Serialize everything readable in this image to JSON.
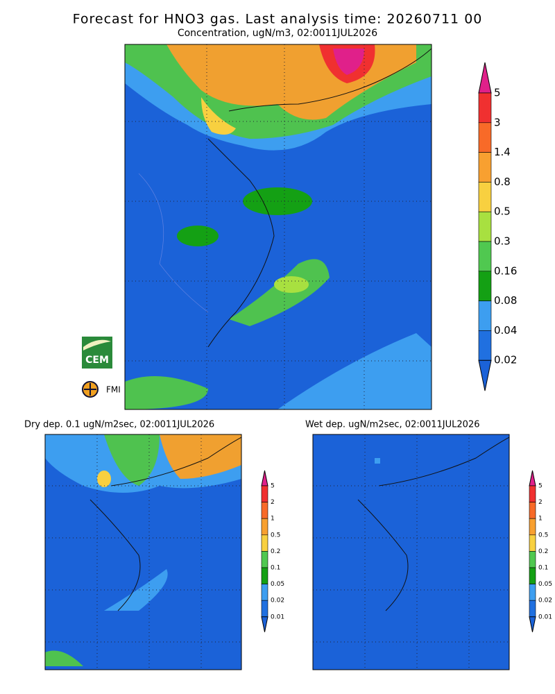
{
  "header": {
    "title": "Forecast for HNO3 gas. Last analysis time: 20260711 00",
    "subtitle": "Concentration, ugN/m3, 02:0011JUL2026"
  },
  "main_colorbar": {
    "labels": [
      "5",
      "3",
      "1.4",
      "0.8",
      "0.5",
      "0.3",
      "0.16",
      "0.08",
      "0.04",
      "0.02"
    ]
  },
  "panels": [
    {
      "title": "Dry dep. 0.1 ugN/m2sec, 02:0011JUL2026",
      "colorbar": {
        "labels": [
          "5",
          "2",
          "1",
          "0.5",
          "0.2",
          "0.1",
          "0.05",
          "0.02",
          "0.01"
        ]
      }
    },
    {
      "title": "Wet dep. ugN/m2sec, 02:0011JUL2026",
      "colorbar": {
        "labels": [
          "5",
          "2",
          "1",
          "0.5",
          "0.2",
          "0.1",
          "0.05",
          "0.02",
          "0.01"
        ]
      }
    }
  ],
  "logos": [
    "CEM",
    "FMI"
  ]
}
